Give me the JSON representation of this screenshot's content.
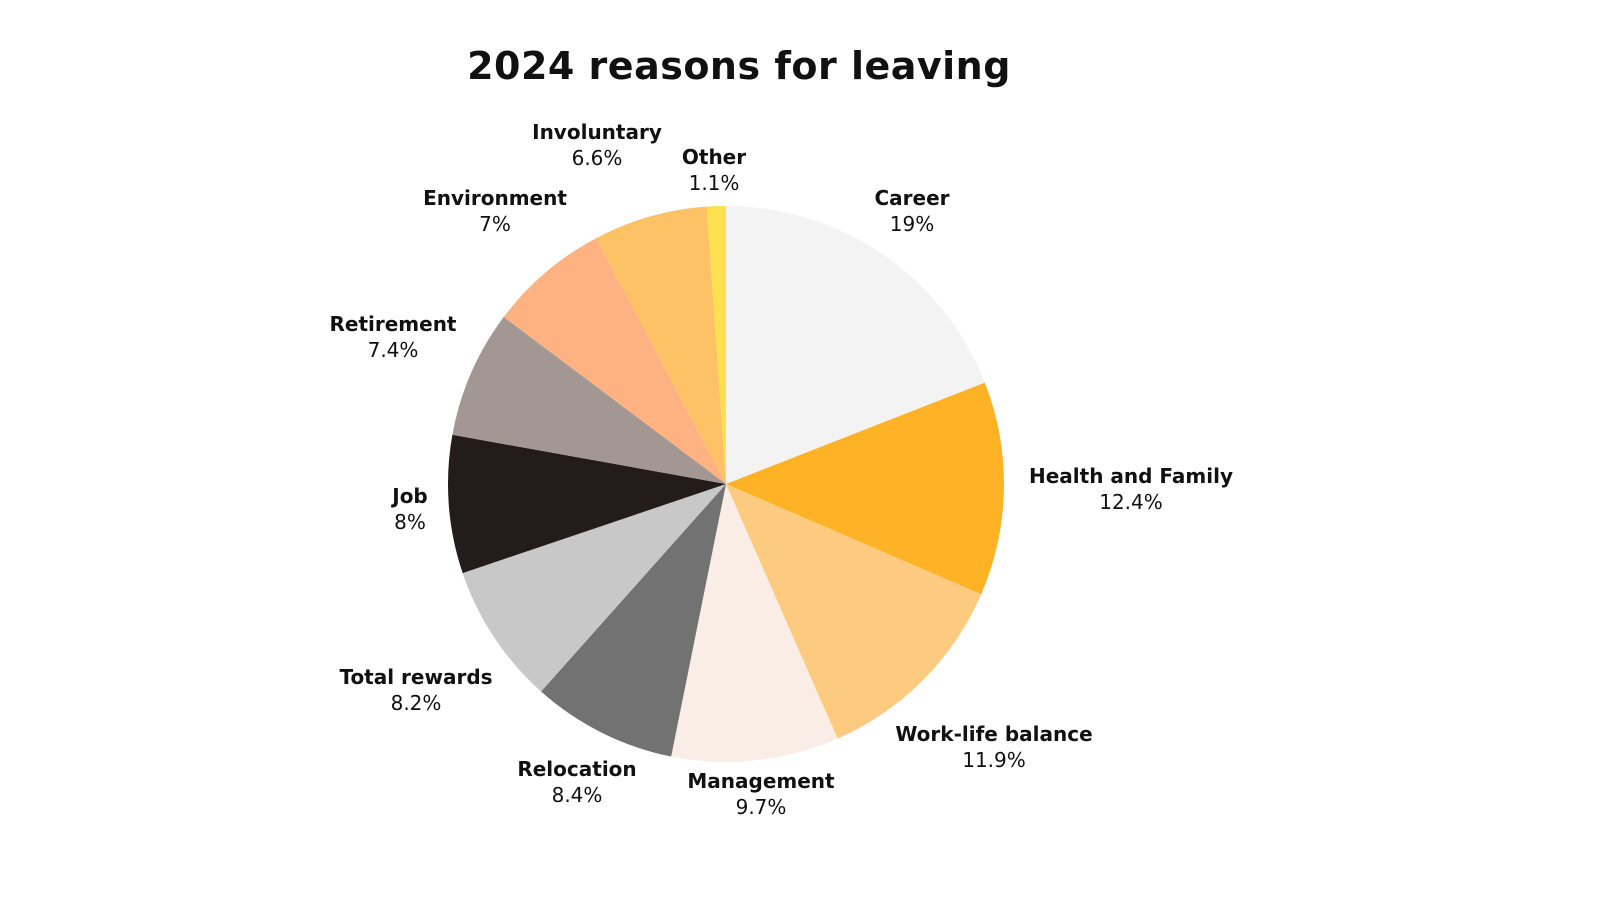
{
  "chart_data": {
    "type": "pie",
    "title": "2024 reasons for leaving",
    "slices": [
      {
        "label": "Career",
        "value": 19,
        "value_text": "19%",
        "color": "#f3f3f3"
      },
      {
        "label": "Health and Family",
        "value": 12.4,
        "value_text": "12.4%",
        "color": "#feb226"
      },
      {
        "label": "Work-life balance",
        "value": 11.9,
        "value_text": "11.9%",
        "color": "#fdcb80"
      },
      {
        "label": "Management",
        "value": 9.7,
        "value_text": "9.7%",
        "color": "#faede5"
      },
      {
        "label": "Relocation",
        "value": 8.4,
        "value_text": "8.4%",
        "color": "#727272"
      },
      {
        "label": "Total rewards",
        "value": 8.2,
        "value_text": "8.2%",
        "color": "#c8c8c8"
      },
      {
        "label": "Job",
        "value": 8,
        "value_text": "8%",
        "color": "#241c1b"
      },
      {
        "label": "Retirement",
        "value": 7.4,
        "value_text": "7.4%",
        "color": "#a39793"
      },
      {
        "label": "Environment",
        "value": 7,
        "value_text": "7%",
        "color": "#feb181"
      },
      {
        "label": "Involuntary",
        "value": 6.6,
        "value_text": "6.6%",
        "color": "#fec266"
      },
      {
        "label": "Other",
        "value": 1.1,
        "value_text": "1.1%",
        "color": "#fde04f"
      }
    ],
    "start_angle": "12 o'clock",
    "direction": "clockwise",
    "legend": "none"
  }
}
